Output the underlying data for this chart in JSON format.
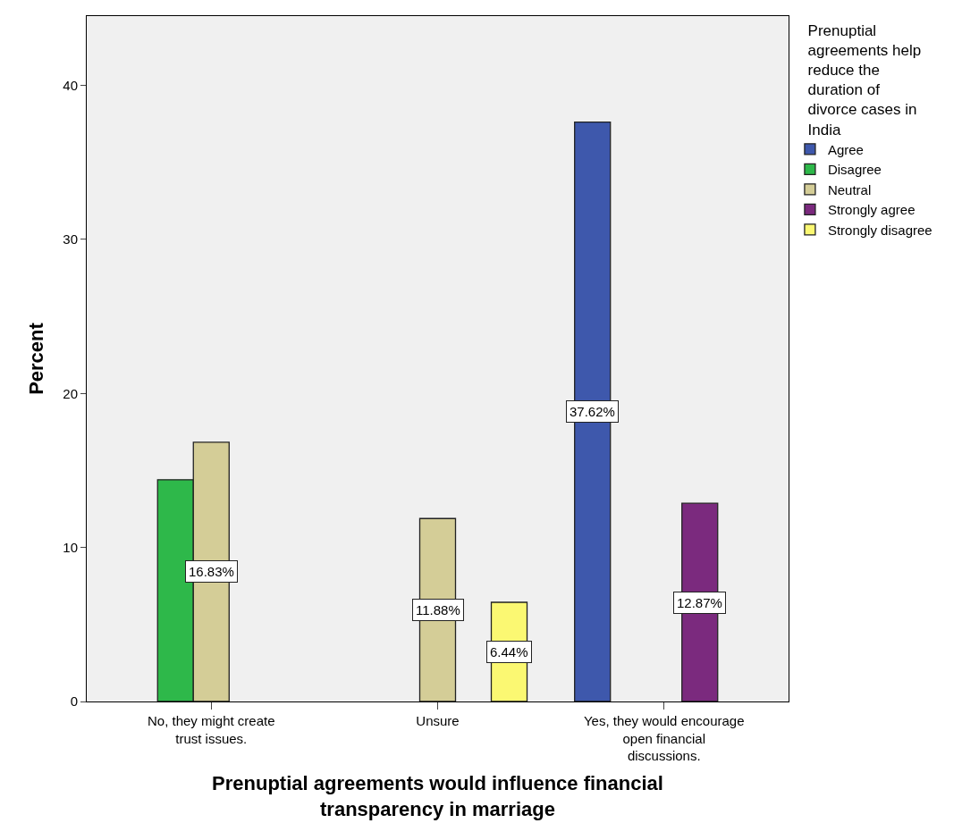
{
  "chart_data": {
    "type": "bar",
    "xlabel": "Prenuptial agreements would influence financial transparency in marriage",
    "ylabel": "Percent",
    "legend_title": "Prenuptial agreements help reduce the duration of divorce cases in India",
    "categories": [
      "No, they might create trust issues.",
      "Unsure",
      "Yes, they would encourage open financial discussions."
    ],
    "series": [
      {
        "name": "Agree",
        "color": "#3e58ac",
        "values": [
          null,
          null,
          37.62
        ],
        "value_labels": [
          null,
          null,
          "37.62%"
        ]
      },
      {
        "name": "Disagree",
        "color": "#2eb84a",
        "values": [
          14.4,
          null,
          null
        ],
        "value_labels": [
          null,
          null,
          null
        ]
      },
      {
        "name": "Neutral",
        "color": "#d4cd97",
        "values": [
          16.83,
          11.88,
          null
        ],
        "value_labels": [
          "16.83%",
          "11.88%",
          null
        ]
      },
      {
        "name": "Strongly agree",
        "color": "#7b2a7e",
        "values": [
          null,
          null,
          12.87
        ],
        "value_labels": [
          null,
          null,
          "12.87%"
        ]
      },
      {
        "name": "Strongly disagree",
        "color": "#fbf872",
        "values": [
          null,
          6.44,
          null
        ],
        "value_labels": [
          null,
          "6.44%",
          null
        ]
      }
    ],
    "ylim": [
      0,
      44.5
    ],
    "yticks": [
      0,
      10,
      20,
      30,
      40
    ],
    "grid": false,
    "legend": "top right"
  }
}
